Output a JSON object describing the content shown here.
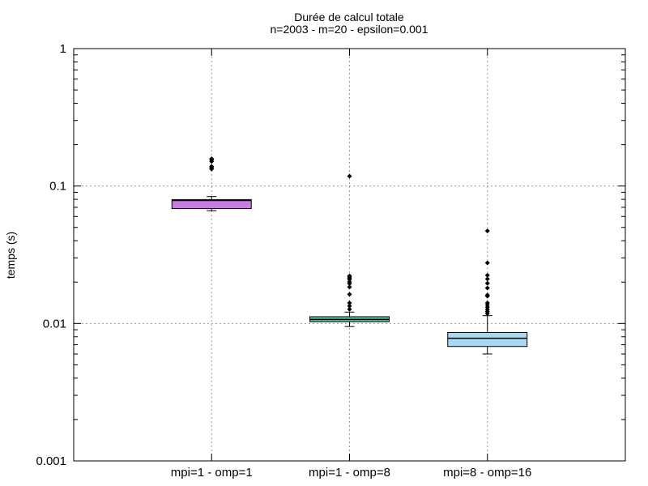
{
  "chart_data": {
    "type": "box",
    "title": "Durée de calcul totale",
    "subtitle": "n=2003 - m=20 - epsilon=0.001",
    "xlabel": "",
    "ylabel": "temps (s)",
    "yscale": "log",
    "ylim": [
      0.001,
      1
    ],
    "ytick_labels": [
      "0.001",
      "0.01",
      "0.1",
      "1"
    ],
    "ytick_values": [
      0.001,
      0.01,
      0.1,
      1
    ],
    "grid": true,
    "categories": [
      "mpi=1 - omp=1",
      "mpi=1 - omp=8",
      "mpi=8 - omp=16"
    ],
    "boxes": [
      {
        "category": "mpi=1 - omp=1",
        "color": "#c77ee0",
        "whisker_low": 0.0662,
        "q1": 0.0685,
        "median": 0.0785,
        "q3": 0.0797,
        "whisker_high": 0.0838,
        "outliers": [
          0.133,
          0.136,
          0.139,
          0.151,
          0.155,
          0.158
        ]
      },
      {
        "category": "mpi=1 - omp=8",
        "color": "#4fc9a0",
        "whisker_low": 0.0095,
        "q1": 0.0103,
        "median": 0.0107,
        "q3": 0.0112,
        "whisker_high": 0.0121,
        "outliers": [
          0.0127,
          0.0134,
          0.0141,
          0.0163,
          0.0184,
          0.0195,
          0.0201,
          0.0209,
          0.0214,
          0.0218,
          0.0222,
          0.118
        ]
      },
      {
        "category": "mpi=8 - omp=16",
        "color": "#a9d8f2",
        "whisker_low": 0.006,
        "q1": 0.0068,
        "median": 0.0078,
        "q3": 0.0086,
        "whisker_high": 0.0114,
        "outliers": [
          0.0118,
          0.0122,
          0.0126,
          0.0131,
          0.0136,
          0.0141,
          0.0158,
          0.0161,
          0.0181,
          0.0196,
          0.0211,
          0.0224,
          0.0276,
          0.0471
        ]
      }
    ]
  }
}
